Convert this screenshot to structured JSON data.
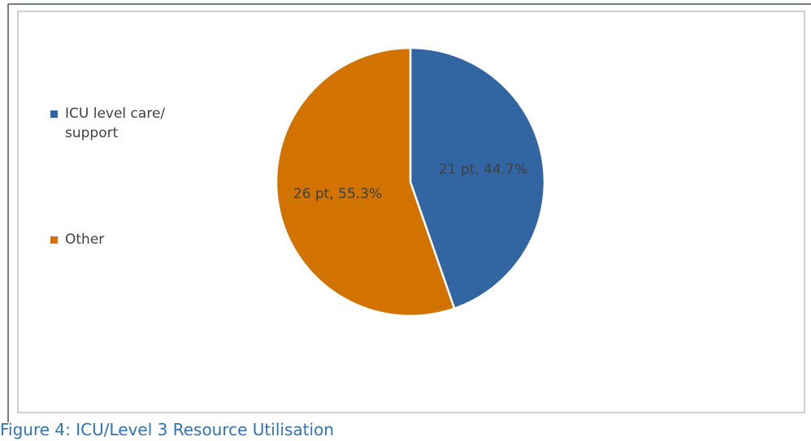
{
  "chart_data": {
    "type": "pie",
    "caption": "Figure 4: ICU/Level 3 Resource Utilisation",
    "categories": [
      "ICU level care/ support",
      "Other"
    ],
    "values": [
      21,
      26
    ],
    "value_labels": [
      "21 pt, 44.7%",
      "26 pt, 55.3%"
    ],
    "colors": [
      "#3166a3",
      "#d27300"
    ],
    "legend": "left"
  }
}
